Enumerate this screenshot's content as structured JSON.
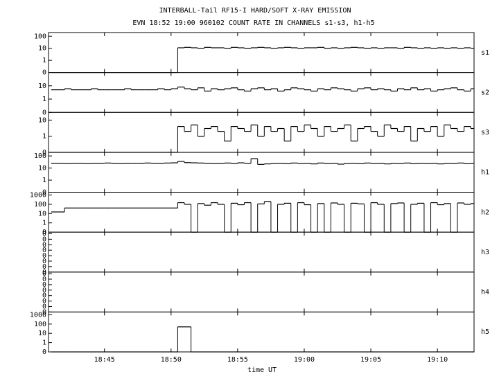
{
  "chart_data": {
    "type": "line",
    "title": "INTERBALL-Tail RF15-I HARD/SOFT X-RAY EMISSION",
    "subtitle": "EVN 18:52 19:00 960102  COUNT RATE IN CHANNELS s1-s3, h1-h5",
    "xlabel": "time UT",
    "drawstyle": "steps-post",
    "color": "#000000",
    "xlim": [
      1120.8,
      1152.75
    ],
    "xticks": [
      {
        "value": 1125,
        "label": "18:45"
      },
      {
        "value": 1130,
        "label": "18:50"
      },
      {
        "value": 1135,
        "label": "18:55"
      },
      {
        "value": 1140,
        "label": "19:00"
      },
      {
        "value": 1145,
        "label": "19:05"
      },
      {
        "value": 1150,
        "label": "19:10"
      }
    ],
    "x": [
      1121,
      1121.5,
      1122,
      1122.5,
      1123,
      1123.5,
      1124,
      1124.5,
      1125,
      1125.5,
      1126,
      1126.5,
      1127,
      1127.5,
      1128,
      1128.5,
      1129,
      1129.5,
      1130,
      1130.5,
      1131,
      1131.5,
      1132,
      1132.5,
      1133,
      1133.5,
      1134,
      1134.5,
      1135,
      1135.5,
      1136,
      1136.5,
      1137,
      1137.5,
      1138,
      1138.5,
      1139,
      1139.5,
      1140,
      1140.5,
      1141,
      1141.5,
      1142,
      1142.5,
      1143,
      1143.5,
      1144,
      1144.5,
      1145,
      1145.5,
      1146,
      1146.5,
      1147,
      1147.5,
      1148,
      1148.5,
      1149,
      1149.5,
      1150,
      1150.5,
      1151,
      1151.5,
      1152,
      1152.5
    ],
    "panels": [
      {
        "label": "s1",
        "yscale": "log-with-zero",
        "ylim": [
          0,
          200
        ],
        "yticks": [
          0,
          1,
          10,
          100
        ],
        "values": [
          0,
          0,
          0,
          0,
          0,
          0,
          0,
          0,
          0,
          0,
          0,
          0,
          0,
          0,
          0,
          0,
          0,
          0,
          0,
          11,
          12,
          11,
          10,
          12,
          11,
          11,
          10,
          12,
          11,
          10,
          11,
          12,
          11,
          10,
          11,
          12,
          11,
          10,
          11,
          11,
          12,
          10,
          11,
          10,
          11,
          12,
          11,
          10,
          11,
          10,
          11,
          11,
          10,
          12,
          11,
          10,
          11,
          10,
          11,
          10,
          11,
          10,
          11,
          10
        ]
      },
      {
        "label": "s2",
        "yscale": "log-with-zero",
        "ylim": [
          0,
          100
        ],
        "yticks": [
          0,
          1,
          10
        ],
        "values": [
          5,
          5,
          6,
          5,
          5,
          5,
          6,
          5,
          5,
          5,
          5,
          6,
          5,
          5,
          5,
          5,
          6,
          5,
          6,
          8,
          6,
          5,
          7,
          4,
          6,
          5,
          6,
          7,
          5,
          4,
          6,
          7,
          5,
          6,
          4,
          5,
          7,
          6,
          5,
          4,
          6,
          5,
          7,
          6,
          5,
          4,
          6,
          7,
          5,
          6,
          5,
          4,
          6,
          5,
          7,
          5,
          6,
          4,
          5,
          6,
          7,
          5,
          4,
          6
        ]
      },
      {
        "label": "s3",
        "yscale": "log-with-zero",
        "ylim": [
          0,
          30
        ],
        "yticks": [
          0,
          1,
          10
        ],
        "values": [
          0,
          0,
          0,
          0,
          0,
          0,
          0,
          0,
          0,
          0,
          0,
          0,
          0,
          0,
          0,
          0,
          0,
          0,
          0,
          4,
          2,
          5,
          1,
          3,
          4,
          2,
          0.5,
          4,
          3,
          2,
          5,
          1,
          4,
          2,
          3,
          0.5,
          4,
          2,
          5,
          3,
          1,
          4,
          2,
          3,
          5,
          0.5,
          3,
          4,
          2,
          1,
          5,
          3,
          2,
          4,
          0.5,
          3,
          2,
          4,
          1,
          5,
          3,
          2,
          4,
          3
        ]
      },
      {
        "label": "h1",
        "yscale": "log-with-zero",
        "ylim": [
          0,
          200
        ],
        "yticks": [
          0,
          1,
          10,
          100
        ],
        "values": [
          25,
          25,
          24,
          25,
          25,
          24,
          25,
          25,
          26,
          25,
          24,
          25,
          25,
          25,
          26,
          25,
          25,
          26,
          27,
          35,
          28,
          27,
          26,
          25,
          24,
          25,
          26,
          24,
          27,
          25,
          60,
          20,
          22,
          24,
          25,
          23,
          26,
          24,
          25,
          22,
          26,
          24,
          25,
          21,
          24,
          25,
          23,
          26,
          24,
          25,
          22,
          25,
          24,
          26,
          23,
          25,
          24,
          25,
          22,
          25,
          24,
          26,
          23,
          25
        ]
      },
      {
        "label": "h2",
        "yscale": "log-with-zero",
        "ylim": [
          0,
          2000
        ],
        "yticks": [
          0,
          1,
          10,
          100,
          1000
        ],
        "values": [
          15,
          15,
          40,
          40,
          40,
          40,
          40,
          40,
          40,
          40,
          40,
          40,
          40,
          40,
          40,
          40,
          40,
          40,
          40,
          150,
          100,
          0,
          120,
          80,
          150,
          100,
          0,
          130,
          90,
          150,
          0,
          110,
          200,
          0,
          100,
          130,
          0,
          150,
          90,
          0,
          120,
          0,
          140,
          100,
          0,
          130,
          110,
          0,
          150,
          100,
          0,
          120,
          140,
          0,
          100,
          130,
          0,
          150,
          90,
          120,
          0,
          140,
          100,
          120
        ]
      },
      {
        "label": "h3",
        "yscale": "linear",
        "ylim": [
          0,
          7.3
        ],
        "yticks": [
          {
            "value": 0,
            "label": "0"
          },
          {
            "value": 1,
            "label": "0"
          },
          {
            "value": 2,
            "label": "0"
          },
          {
            "value": 3,
            "label": "0"
          },
          {
            "value": 4,
            "label": "0"
          },
          {
            "value": 5,
            "label": "0"
          },
          {
            "value": 6,
            "label": "0"
          },
          {
            "value": 7,
            "label": "0"
          }
        ]
      },
      {
        "label": "h4",
        "yscale": "linear",
        "ylim": [
          0,
          7.3
        ],
        "yticks": [
          {
            "value": 0,
            "label": "0"
          },
          {
            "value": 1,
            "label": "0"
          },
          {
            "value": 2,
            "label": "0"
          },
          {
            "value": 3,
            "label": "0"
          },
          {
            "value": 4,
            "label": "0"
          },
          {
            "value": 5,
            "label": "0"
          },
          {
            "value": 6,
            "label": "0"
          },
          {
            "value": 7,
            "label": "0"
          }
        ]
      },
      {
        "label": "h5",
        "yscale": "log-with-zero",
        "ylim": [
          0,
          2000
        ],
        "yticks": [
          0,
          1,
          10,
          100,
          1000
        ],
        "values": [
          0,
          0,
          0,
          0,
          0,
          0,
          0,
          0,
          0,
          0,
          0,
          0,
          0,
          0,
          0,
          0,
          0,
          0,
          0,
          50,
          50,
          0,
          0,
          0,
          0,
          0,
          0,
          0,
          0,
          0,
          0,
          0,
          0,
          0,
          0,
          0,
          0,
          0,
          0,
          0,
          0,
          0,
          0,
          0,
          0,
          0,
          0,
          0,
          0,
          0,
          0,
          0,
          0,
          0,
          0,
          0,
          0,
          0,
          0,
          0,
          0,
          0,
          0,
          0
        ]
      }
    ]
  }
}
